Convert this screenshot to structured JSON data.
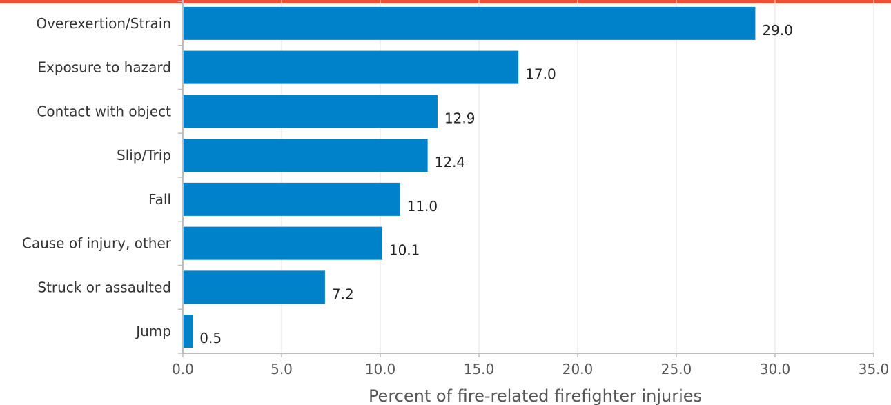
{
  "colors": {
    "accent": "#f04e37",
    "bar": "#0082ca",
    "grid": "#e3e3e3",
    "axis": "#bdbdbd"
  },
  "chart_data": {
    "type": "bar",
    "orientation": "horizontal",
    "categories": [
      "Overexertion/Strain",
      "Exposure to hazard",
      "Contact with object",
      "Slip/Trip",
      "Fall",
      "Cause of injury, other",
      "Struck or assaulted",
      "Jump"
    ],
    "values": [
      29.0,
      17.0,
      12.9,
      12.4,
      11.0,
      10.1,
      7.2,
      0.5
    ],
    "value_labels": [
      "29.0",
      "17.0",
      "12.9",
      "12.4",
      "11.0",
      "10.1",
      "7.2",
      "0.5"
    ],
    "title": "",
    "xlabel": "Percent of fire-related firefighter injuries",
    "ylabel": "",
    "xlim": [
      0,
      35
    ],
    "xticks": [
      0,
      5,
      10,
      15,
      20,
      25,
      30,
      35
    ],
    "xtick_labels": [
      "0.0",
      "5.0",
      "10.0",
      "15.0",
      "20.0",
      "25.0",
      "30.0",
      "35.0"
    ],
    "grid": "vertical",
    "legend": "none"
  }
}
